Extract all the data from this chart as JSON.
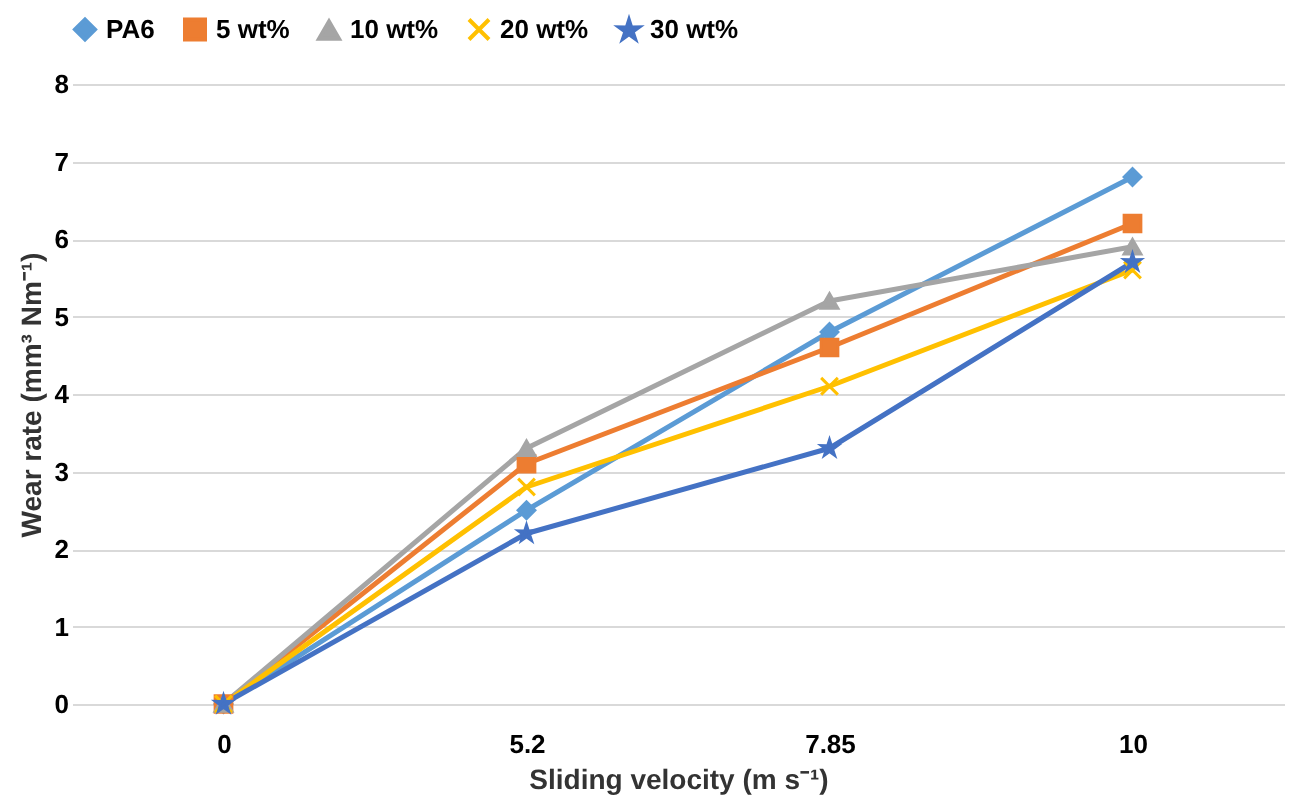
{
  "chart_data": {
    "type": "line",
    "xlabel": "Sliding velocity (m s⁻¹)",
    "ylabel": "Wear rate (mm³ Nm⁻¹)",
    "categories": [
      "0",
      "5.2",
      "7.85",
      "10"
    ],
    "ylim": [
      0,
      8
    ],
    "yticks": [
      0,
      1,
      2,
      3,
      4,
      5,
      6,
      7,
      8
    ],
    "grid": "y",
    "legend": "top",
    "line_style": "solid",
    "series": [
      {
        "name": "PA6",
        "color": "#5b9bd5",
        "marker": "diamond",
        "values": [
          0,
          2.5,
          4.8,
          6.8
        ]
      },
      {
        "name": "5 wt%",
        "color": "#ed7d31",
        "marker": "square",
        "values": [
          0,
          3.1,
          4.6,
          6.2
        ]
      },
      {
        "name": "10 wt%",
        "color": "#a5a5a5",
        "marker": "triangle",
        "values": [
          0,
          3.3,
          5.2,
          5.9
        ]
      },
      {
        "name": "20 wt%",
        "color": "#ffc000",
        "marker": "cross",
        "values": [
          0,
          2.8,
          4.1,
          5.6
        ]
      },
      {
        "name": "30 wt%",
        "color": "#4472c4",
        "marker": "star",
        "values": [
          0,
          2.2,
          3.3,
          5.7
        ]
      }
    ]
  }
}
